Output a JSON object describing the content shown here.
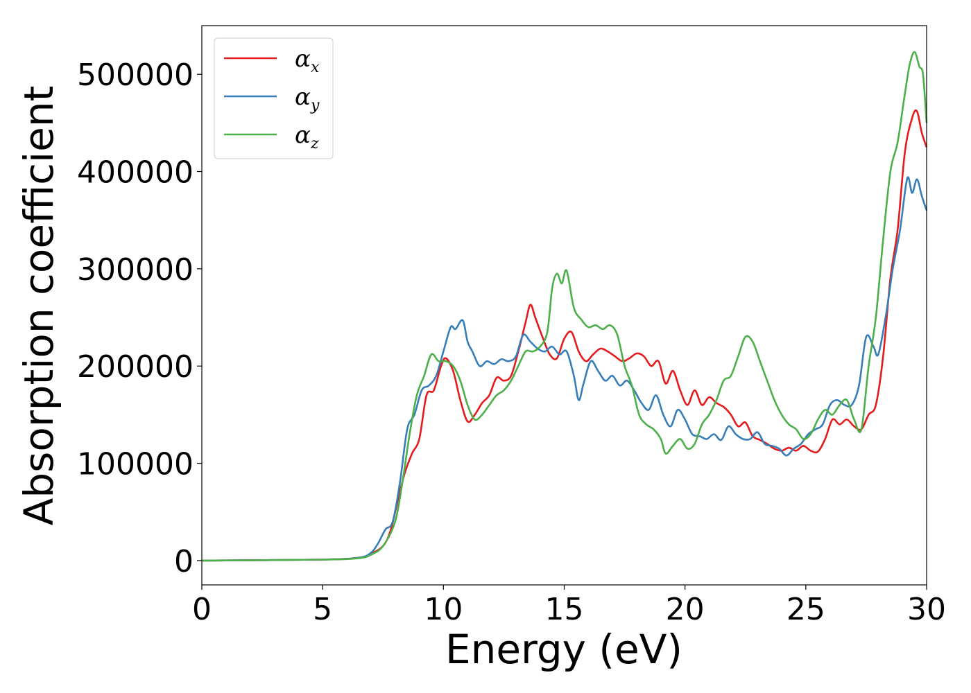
{
  "chart_data": {
    "type": "line",
    "title": "",
    "xlabel": "Energy (eV)",
    "ylabel": "Absorption coefficient",
    "xlim": [
      0,
      30
    ],
    "ylim": [
      -25000,
      550000
    ],
    "xticks": [
      0,
      5,
      10,
      15,
      20,
      25,
      30
    ],
    "yticks": [
      0,
      100000,
      200000,
      300000,
      400000,
      500000
    ],
    "grid": false,
    "legend_position": "top-left",
    "series": [
      {
        "name": "αx",
        "symbol": "α",
        "subscript": "x",
        "color": "#e41a1c",
        "x": [
          0,
          5,
          6.5,
          7.0,
          7.5,
          7.8,
          8.1,
          8.4,
          8.7,
          9.0,
          9.3,
          9.6,
          9.9,
          10.1,
          10.4,
          10.7,
          11.0,
          11.3,
          11.6,
          11.9,
          12.2,
          12.5,
          12.8,
          13.1,
          13.4,
          13.6,
          13.8,
          14.1,
          14.4,
          14.7,
          15.0,
          15.3,
          15.6,
          15.9,
          16.2,
          16.5,
          16.8,
          17.1,
          17.4,
          17.7,
          18.0,
          18.3,
          18.6,
          18.9,
          19.2,
          19.5,
          19.8,
          20.1,
          20.4,
          20.7,
          21.0,
          21.3,
          21.6,
          21.9,
          22.2,
          22.5,
          22.8,
          23.1,
          23.4,
          23.7,
          24.0,
          24.3,
          24.6,
          24.9,
          25.2,
          25.5,
          25.8,
          26.1,
          26.4,
          26.7,
          27.0,
          27.3,
          27.6,
          27.9,
          28.2,
          28.5,
          28.8,
          29.1,
          29.4,
          29.6,
          29.8,
          30.0
        ],
        "values": [
          0,
          1000,
          3000,
          7000,
          15000,
          30000,
          60000,
          90000,
          110000,
          125000,
          170000,
          175000,
          200000,
          208000,
          195000,
          165000,
          143000,
          150000,
          162000,
          170000,
          188000,
          185000,
          190000,
          215000,
          245000,
          263000,
          250000,
          230000,
          212000,
          208000,
          228000,
          235000,
          215000,
          205000,
          212000,
          218000,
          215000,
          210000,
          205000,
          208000,
          213000,
          210000,
          200000,
          205000,
          182000,
          195000,
          175000,
          160000,
          175000,
          160000,
          168000,
          162000,
          158000,
          150000,
          138000,
          142000,
          128000,
          124000,
          120000,
          115000,
          113000,
          116000,
          113000,
          118000,
          113000,
          112000,
          125000,
          145000,
          140000,
          145000,
          138000,
          135000,
          150000,
          160000,
          210000,
          290000,
          340000,
          420000,
          455000,
          462000,
          440000,
          425000
        ]
      },
      {
        "name": "αy",
        "symbol": "α",
        "subscript": "y",
        "color": "#377eb8",
        "x": [
          0,
          5,
          6.5,
          7.0,
          7.3,
          7.6,
          7.9,
          8.2,
          8.5,
          8.8,
          9.1,
          9.4,
          9.7,
          10.0,
          10.3,
          10.5,
          10.8,
          11.0,
          11.2,
          11.5,
          11.8,
          12.1,
          12.4,
          12.7,
          13.0,
          13.3,
          13.6,
          13.9,
          14.2,
          14.5,
          14.8,
          15.1,
          15.4,
          15.6,
          15.8,
          16.1,
          16.4,
          16.7,
          17.0,
          17.3,
          17.6,
          17.9,
          18.2,
          18.5,
          18.8,
          19.1,
          19.4,
          19.7,
          20.0,
          20.3,
          20.6,
          20.9,
          21.2,
          21.5,
          21.8,
          22.1,
          22.4,
          22.7,
          23.0,
          23.3,
          23.6,
          23.9,
          24.2,
          24.5,
          24.8,
          25.1,
          25.4,
          25.7,
          26.0,
          26.3,
          26.6,
          26.9,
          27.2,
          27.5,
          27.8,
          28.0,
          28.3,
          28.6,
          28.9,
          29.2,
          29.4,
          29.6,
          29.8,
          30.0
        ],
        "values": [
          0,
          1000,
          3000,
          8000,
          18000,
          32000,
          40000,
          80000,
          135000,
          150000,
          175000,
          180000,
          190000,
          215000,
          240000,
          238000,
          247000,
          225000,
          215000,
          200000,
          205000,
          202000,
          207000,
          205000,
          210000,
          232000,
          225000,
          218000,
          215000,
          220000,
          212000,
          215000,
          190000,
          165000,
          182000,
          205000,
          195000,
          185000,
          190000,
          180000,
          185000,
          175000,
          162000,
          155000,
          170000,
          150000,
          138000,
          155000,
          145000,
          130000,
          128000,
          125000,
          130000,
          124000,
          138000,
          130000,
          125000,
          125000,
          132000,
          120000,
          118000,
          115000,
          108000,
          115000,
          120000,
          130000,
          135000,
          140000,
          160000,
          165000,
          160000,
          160000,
          180000,
          230000,
          220000,
          212000,
          250000,
          300000,
          340000,
          393000,
          378000,
          392000,
          375000,
          360000
        ]
      },
      {
        "name": "αz",
        "symbol": "α",
        "subscript": "z",
        "color": "#4daf4a",
        "x": [
          0,
          5,
          6.5,
          7.0,
          7.5,
          8.0,
          8.3,
          8.6,
          8.9,
          9.2,
          9.5,
          9.8,
          10.1,
          10.4,
          10.7,
          11.0,
          11.3,
          11.6,
          11.9,
          12.2,
          12.5,
          12.8,
          13.1,
          13.4,
          13.7,
          14.0,
          14.3,
          14.5,
          14.7,
          14.9,
          15.1,
          15.4,
          15.7,
          16.0,
          16.3,
          16.6,
          16.9,
          17.2,
          17.5,
          17.8,
          18.1,
          18.4,
          18.7,
          19.0,
          19.2,
          19.5,
          19.8,
          20.1,
          20.4,
          20.7,
          21.0,
          21.3,
          21.6,
          21.9,
          22.2,
          22.5,
          22.8,
          23.1,
          23.4,
          23.7,
          24.0,
          24.3,
          24.6,
          24.9,
          25.2,
          25.5,
          25.8,
          26.1,
          26.4,
          26.7,
          27.0,
          27.3,
          27.6,
          27.9,
          28.2,
          28.5,
          28.8,
          29.1,
          29.3,
          29.5,
          29.7,
          29.85,
          30.0
        ],
        "values": [
          0,
          1000,
          2500,
          6000,
          15000,
          40000,
          80000,
          130000,
          170000,
          190000,
          212000,
          205000,
          205000,
          200000,
          185000,
          160000,
          145000,
          150000,
          160000,
          170000,
          175000,
          185000,
          200000,
          215000,
          215000,
          220000,
          235000,
          280000,
          295000,
          285000,
          298000,
          260000,
          248000,
          240000,
          242000,
          238000,
          242000,
          232000,
          200000,
          180000,
          150000,
          140000,
          135000,
          125000,
          110000,
          118000,
          125000,
          115000,
          120000,
          140000,
          150000,
          165000,
          185000,
          190000,
          210000,
          230000,
          225000,
          205000,
          185000,
          165000,
          150000,
          140000,
          135000,
          125000,
          130000,
          145000,
          155000,
          150000,
          160000,
          165000,
          145000,
          135000,
          200000,
          250000,
          330000,
          400000,
          430000,
          480000,
          510000,
          523000,
          508000,
          500000,
          450000
        ]
      }
    ]
  }
}
